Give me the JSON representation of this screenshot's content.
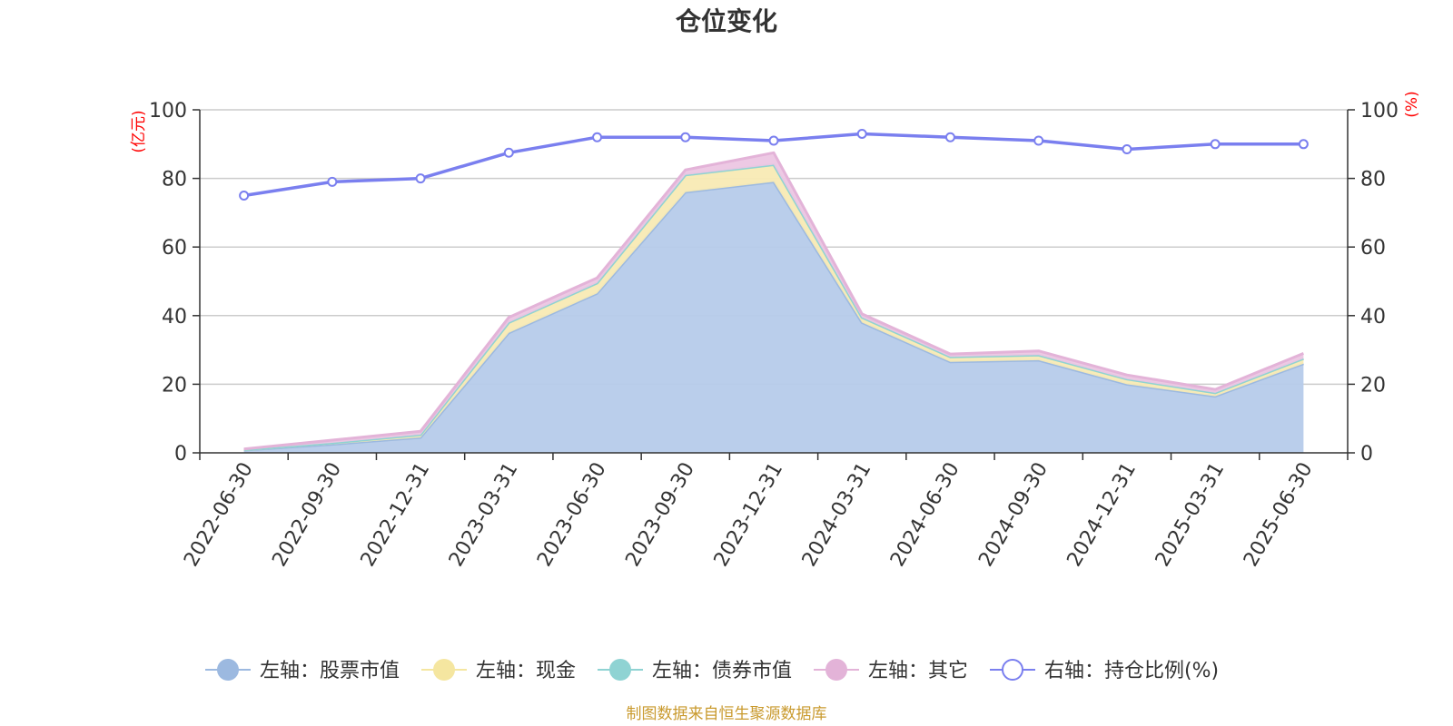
{
  "chart_data": {
    "type": "area",
    "title": "仓位变化",
    "left_axis_unit": "(亿元)",
    "right_axis_unit": "(%)",
    "categories": [
      "2022-06-30",
      "2022-09-30",
      "2022-12-31",
      "2023-03-31",
      "2023-06-30",
      "2023-09-30",
      "2023-12-31",
      "2024-03-31",
      "2024-06-30",
      "2024-09-30",
      "2024-12-31",
      "2025-03-31",
      "2025-06-30"
    ],
    "left_ylim": [
      0,
      100
    ],
    "right_ylim": [
      0,
      100
    ],
    "left_yticks": [
      "0",
      "20",
      "40",
      "60",
      "80",
      "100"
    ],
    "right_yticks": [
      "0",
      "20",
      "40",
      "60",
      "80",
      "100"
    ],
    "stacked": true,
    "grid": true,
    "legend_position": "bottom",
    "series": [
      {
        "name": "左轴：股票市值",
        "axis": "left",
        "kind": "area",
        "color": "#9cb9e0",
        "fill": "#b6cbea",
        "values": [
          0.8,
          2.5,
          4.5,
          35,
          46.5,
          76,
          79,
          38,
          26.5,
          27,
          20,
          16.5,
          26
        ]
      },
      {
        "name": "左轴：现金",
        "axis": "left",
        "kind": "area",
        "color": "#f5e6a0",
        "fill": "#f8eab4",
        "values": [
          0.1,
          0.4,
          0.8,
          3,
          3,
          5,
          5,
          1.5,
          1.5,
          1.5,
          1.5,
          1,
          1.5
        ]
      },
      {
        "name": "左轴：债券市值",
        "axis": "left",
        "kind": "area",
        "color": "#8fd3d3",
        "fill": "#a5dcdc",
        "values": [
          0,
          0,
          0,
          0,
          0,
          0,
          0,
          0,
          0,
          0,
          0,
          0,
          0
        ]
      },
      {
        "name": "左轴：其它",
        "axis": "left",
        "kind": "area",
        "color": "#e3b3d8",
        "fill": "#ecc6e3",
        "values": [
          0.2,
          0.8,
          1,
          1.5,
          1.5,
          1.5,
          3.5,
          1,
          0.8,
          1.2,
          1.2,
          1,
          1.5
        ]
      },
      {
        "name": "右轴：持仓比例(%)",
        "axis": "right",
        "kind": "line",
        "color": "#7a7fef",
        "values": [
          75,
          79,
          80,
          87.5,
          92,
          92,
          91,
          93,
          92,
          91,
          88.5,
          90,
          90
        ]
      }
    ],
    "source_note": "制图数据来自恒生聚源数据库"
  }
}
